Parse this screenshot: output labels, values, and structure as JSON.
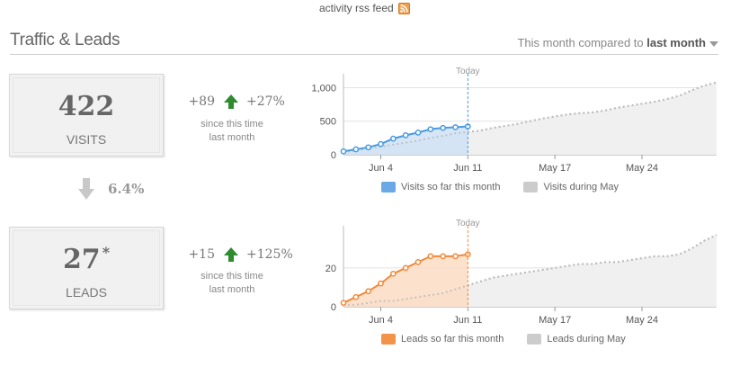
{
  "rss": {
    "label": "activity rss feed",
    "icon": "rss-icon"
  },
  "header": {
    "title": "Traffic & Leads",
    "period_prefix": "This month compared to",
    "period_value": "last month"
  },
  "visits": {
    "value": "422",
    "label": "VISITS",
    "delta_abs": "+89",
    "delta_pct": "+27%",
    "since_line1": "since this time",
    "since_line2": "last month",
    "trend_icon": "arrow-up-icon"
  },
  "conversion": {
    "value": "6.4%",
    "icon": "arrow-down-icon"
  },
  "leads": {
    "value": "27",
    "star": "*",
    "label": "LEADS",
    "delta_abs": "+15",
    "delta_pct": "+125%",
    "since_line1": "since this time",
    "since_line2": "last month",
    "trend_icon": "arrow-up-icon"
  },
  "colors": {
    "visits": "#4a9be0",
    "visits_fill": "#cfe2f6",
    "leads": "#f08a3c",
    "leads_fill": "#fbdcc4",
    "prior": "#bdbdbd",
    "prior_fill": "#f0f0f0",
    "up_arrow": "#2e8b2e",
    "down_arrow": "#c8c8c8"
  },
  "chart_data": [
    {
      "type": "area",
      "today_label": "Today",
      "x_tick_labels": [
        "Jun 4",
        "Jun 11",
        "May 17",
        "May 24"
      ],
      "y_tick_labels": [
        "0",
        "500",
        "1,000"
      ],
      "ylim": [
        0,
        1100
      ],
      "x_days": 31,
      "today_day": 10,
      "series": [
        {
          "name": "Visits so far this month",
          "values": [
            50,
            80,
            110,
            160,
            240,
            290,
            330,
            380,
            400,
            410,
            422
          ]
        },
        {
          "name": "Visits during May",
          "values": [
            40,
            60,
            90,
            120,
            150,
            180,
            210,
            250,
            280,
            320,
            340,
            360,
            400,
            430,
            460,
            500,
            540,
            570,
            600,
            620,
            630,
            660,
            700,
            730,
            760,
            790,
            830,
            880,
            960,
            1030,
            1080
          ]
        }
      ],
      "legend_position": "bottom",
      "grid": true
    },
    {
      "type": "area",
      "today_label": "Today",
      "x_tick_labels": [
        "Jun 4",
        "Jun 11",
        "May 17",
        "May 24"
      ],
      "y_tick_labels": [
        "0",
        "20"
      ],
      "ylim": [
        0,
        38
      ],
      "x_days": 31,
      "today_day": 10,
      "series": [
        {
          "name": "Leads so far this month",
          "values": [
            2,
            5,
            8,
            12,
            17,
            20,
            23,
            26,
            26,
            26,
            27
          ]
        },
        {
          "name": "Leads during May",
          "values": [
            1,
            1,
            2,
            3,
            3,
            4,
            5,
            6,
            7,
            9,
            11,
            13,
            15,
            16,
            17,
            18,
            19,
            20,
            21,
            22,
            22,
            23,
            23,
            24,
            25,
            26,
            26,
            27,
            30,
            34,
            37
          ]
        }
      ],
      "legend_position": "bottom",
      "grid": true
    }
  ]
}
